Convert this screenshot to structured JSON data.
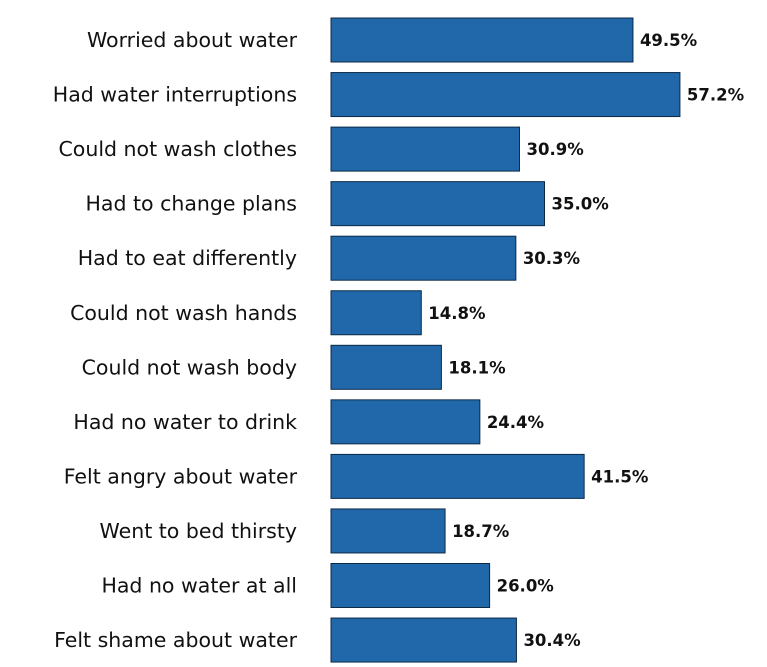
{
  "chart_data": {
    "type": "bar",
    "orientation": "horizontal",
    "categories": [
      "Worried about water",
      "Had water interruptions",
      "Could not wash clothes",
      "Had to change plans",
      "Had to eat differently",
      "Could not wash hands",
      "Could not wash body",
      "Had no water to drink",
      "Felt angry about water",
      "Went to bed thirsty",
      "Had no water at all",
      "Felt shame about water"
    ],
    "values": [
      49.5,
      57.2,
      30.9,
      35.0,
      30.3,
      14.8,
      18.1,
      24.4,
      41.5,
      18.7,
      26.0,
      30.4
    ],
    "value_labels": [
      "49.5%",
      "57.2%",
      "30.9%",
      "35.0%",
      "30.3%",
      "14.8%",
      "18.1%",
      "24.4%",
      "41.5%",
      "18.7%",
      "26.0%",
      "30.4%"
    ],
    "unit": "%",
    "xlim": [
      0,
      57.2
    ],
    "grid": false,
    "legend": "none",
    "bar_color": "#2068a9"
  }
}
